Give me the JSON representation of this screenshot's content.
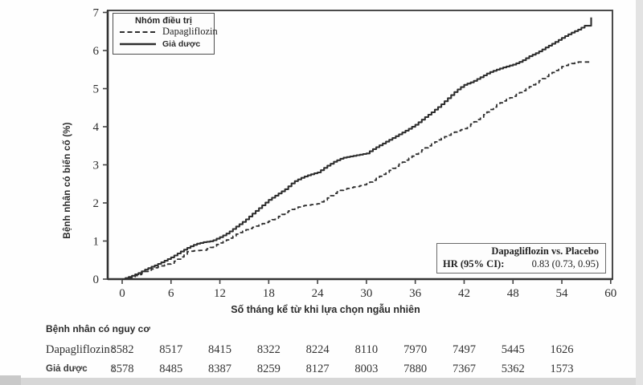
{
  "figure": {
    "y_axis": {
      "label": "Bệnh nhân có biến cố (%)",
      "ticks": [
        0,
        1,
        2,
        3,
        4,
        5,
        6,
        7
      ]
    },
    "x_axis": {
      "label": "Số tháng kể từ khi lựa chọn ngẫu nhiên",
      "ticks": [
        0,
        6,
        12,
        18,
        24,
        30,
        36,
        42,
        48,
        54,
        60
      ]
    },
    "legend": {
      "title": "Nhóm điều trị",
      "items": [
        {
          "label": "Dapagliflozin",
          "style": "dashed"
        },
        {
          "label": "Giả dược",
          "style": "solid"
        }
      ]
    },
    "hr_box": {
      "title": "Dapagliflozin vs. Placebo",
      "stat_label": "HR (95% CI):",
      "stat_value": "0.83 (0.73, 0.95)"
    },
    "risk_table": {
      "title": "Bệnh nhân có nguy cơ",
      "months": [
        0,
        6,
        12,
        18,
        24,
        30,
        36,
        42,
        48,
        54
      ],
      "rows": [
        {
          "label": "Dapagliflozin",
          "colon": ":",
          "values": [
            8582,
            8517,
            8415,
            8322,
            8224,
            8110,
            7970,
            7497,
            5445,
            1626
          ]
        },
        {
          "label": "Giả dược",
          "colon": ":",
          "values": [
            8578,
            8485,
            8387,
            8259,
            8127,
            8003,
            7880,
            7367,
            5362,
            1573
          ]
        }
      ]
    },
    "colors": {
      "curve": "#2e2e2e",
      "frame": "#4a4a4a",
      "text": "#222222"
    }
  },
  "chart_data": {
    "type": "line",
    "subtype": "kaplan-meier-cumulative-incidence",
    "title": "",
    "xlabel": "Số tháng kể từ khi lựa chọn ngẫu nhiên",
    "ylabel": "Bệnh nhân có biến cố (%)",
    "xlim": [
      0,
      60
    ],
    "ylim": [
      0,
      7
    ],
    "x_ticks": [
      0,
      6,
      12,
      18,
      24,
      30,
      36,
      42,
      48,
      54,
      60
    ],
    "y_ticks": [
      0,
      1,
      2,
      3,
      4,
      5,
      6,
      7
    ],
    "grid": false,
    "legend_position": "top-left",
    "annotation": {
      "title": "Dapagliflozin vs. Placebo",
      "hr_label": "HR (95% CI):",
      "hr_value": "0.83 (0.73, 0.95)"
    },
    "series": [
      {
        "name": "Giả dược",
        "style": "solid",
        "points": [
          [
            0,
            0
          ],
          [
            1,
            0.07
          ],
          [
            2,
            0.16
          ],
          [
            3,
            0.27
          ],
          [
            4,
            0.36
          ],
          [
            5,
            0.46
          ],
          [
            6,
            0.57
          ],
          [
            7,
            0.7
          ],
          [
            8,
            0.82
          ],
          [
            9,
            0.92
          ],
          [
            10,
            0.97
          ],
          [
            11,
            1.0
          ],
          [
            12,
            1.1
          ],
          [
            13,
            1.22
          ],
          [
            14,
            1.38
          ],
          [
            15,
            1.53
          ],
          [
            16,
            1.72
          ],
          [
            17,
            1.9
          ],
          [
            18,
            2.08
          ],
          [
            19,
            2.22
          ],
          [
            20,
            2.36
          ],
          [
            21,
            2.55
          ],
          [
            22,
            2.66
          ],
          [
            23,
            2.74
          ],
          [
            24,
            2.8
          ],
          [
            25,
            2.95
          ],
          [
            26,
            3.08
          ],
          [
            27,
            3.18
          ],
          [
            28,
            3.22
          ],
          [
            29,
            3.26
          ],
          [
            30,
            3.3
          ],
          [
            31,
            3.44
          ],
          [
            32,
            3.56
          ],
          [
            33,
            3.68
          ],
          [
            34,
            3.8
          ],
          [
            35,
            3.92
          ],
          [
            36,
            4.05
          ],
          [
            37,
            4.22
          ],
          [
            38,
            4.38
          ],
          [
            39,
            4.55
          ],
          [
            40,
            4.75
          ],
          [
            41,
            4.95
          ],
          [
            42,
            5.1
          ],
          [
            43,
            5.18
          ],
          [
            44,
            5.3
          ],
          [
            45,
            5.42
          ],
          [
            46,
            5.5
          ],
          [
            47,
            5.57
          ],
          [
            48,
            5.63
          ],
          [
            49,
            5.72
          ],
          [
            50,
            5.85
          ],
          [
            51,
            5.95
          ],
          [
            52,
            6.08
          ],
          [
            53,
            6.2
          ],
          [
            54,
            6.33
          ],
          [
            55,
            6.45
          ],
          [
            56,
            6.55
          ],
          [
            56.8,
            6.65
          ],
          [
            57.2,
            6.65
          ],
          [
            57.3,
            6.87
          ],
          [
            57.6,
            6.87
          ]
        ]
      },
      {
        "name": "Dapagliflozin",
        "style": "dashed",
        "points": [
          [
            0,
            0
          ],
          [
            1,
            0.05
          ],
          [
            2,
            0.12
          ],
          [
            3,
            0.22
          ],
          [
            4,
            0.3
          ],
          [
            5,
            0.36
          ],
          [
            6,
            0.42
          ],
          [
            7,
            0.55
          ],
          [
            8,
            0.72
          ],
          [
            9,
            0.75
          ],
          [
            10,
            0.76
          ],
          [
            11,
            0.85
          ],
          [
            12,
            0.95
          ],
          [
            13,
            1.05
          ],
          [
            14,
            1.18
          ],
          [
            15,
            1.28
          ],
          [
            16,
            1.36
          ],
          [
            17,
            1.44
          ],
          [
            18,
            1.52
          ],
          [
            19,
            1.62
          ],
          [
            20,
            1.75
          ],
          [
            21,
            1.85
          ],
          [
            22,
            1.92
          ],
          [
            23,
            1.95
          ],
          [
            24,
            1.98
          ],
          [
            25,
            2.1
          ],
          [
            26,
            2.25
          ],
          [
            27,
            2.35
          ],
          [
            28,
            2.4
          ],
          [
            29,
            2.44
          ],
          [
            30,
            2.5
          ],
          [
            31,
            2.62
          ],
          [
            32,
            2.75
          ],
          [
            33,
            2.88
          ],
          [
            34,
            3.02
          ],
          [
            35,
            3.15
          ],
          [
            36,
            3.28
          ],
          [
            37,
            3.42
          ],
          [
            38,
            3.55
          ],
          [
            39,
            3.68
          ],
          [
            40,
            3.78
          ],
          [
            41,
            3.88
          ],
          [
            42,
            3.95
          ],
          [
            43,
            4.1
          ],
          [
            44,
            4.25
          ],
          [
            45,
            4.42
          ],
          [
            46,
            4.58
          ],
          [
            47,
            4.7
          ],
          [
            48,
            4.8
          ],
          [
            49,
            4.92
          ],
          [
            50,
            5.05
          ],
          [
            51,
            5.18
          ],
          [
            52,
            5.32
          ],
          [
            53,
            5.45
          ],
          [
            54,
            5.58
          ],
          [
            55,
            5.65
          ],
          [
            56,
            5.7
          ],
          [
            57.5,
            5.7
          ]
        ]
      }
    ]
  }
}
